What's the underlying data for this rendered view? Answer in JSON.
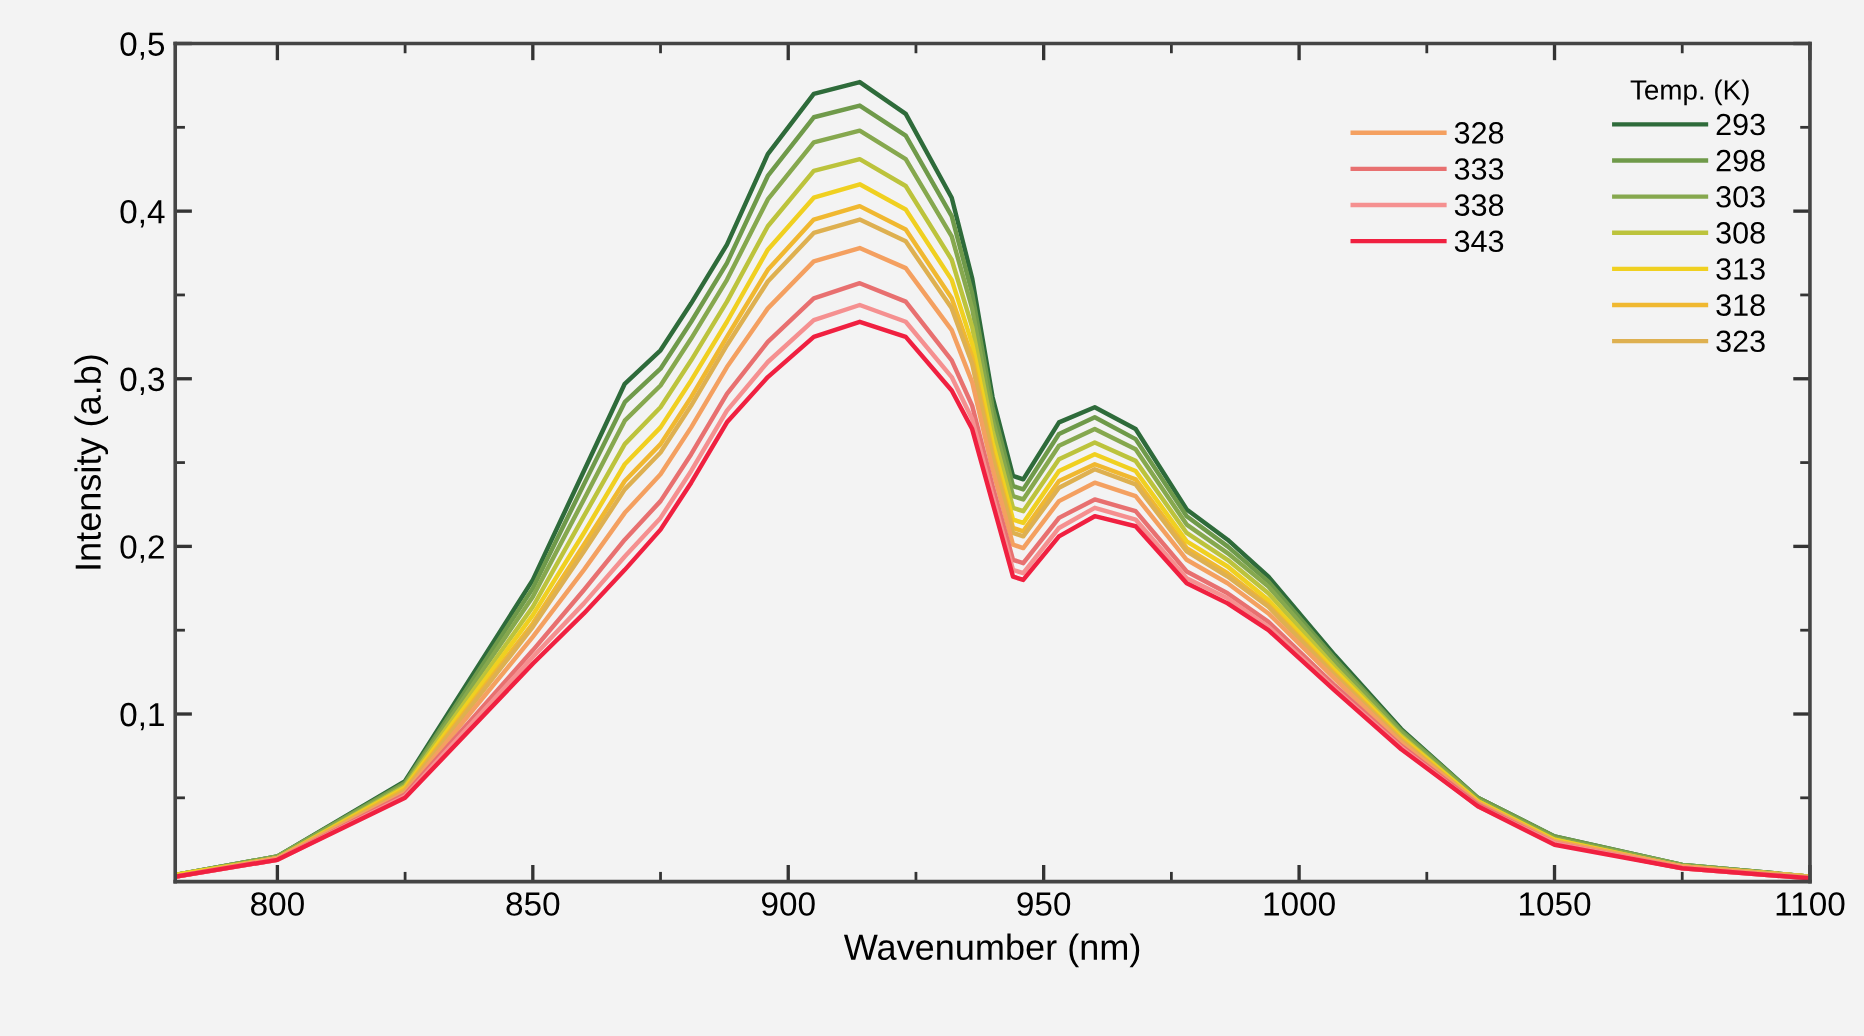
{
  "chart_data": {
    "type": "line",
    "xlabel": "Wavenumber (nm)",
    "ylabel": "Intensity (a.b)",
    "legend_title": "Temp. (K)",
    "legend": "top right",
    "grid": false,
    "line_style": "solid",
    "x": [
      780,
      800,
      825,
      850,
      860,
      868,
      875,
      881,
      888,
      896,
      905,
      914,
      923,
      932,
      936,
      940,
      944,
      946,
      953,
      960,
      968,
      978,
      986,
      994,
      1007,
      1020,
      1035,
      1050,
      1075,
      1100
    ],
    "xlim": [
      780,
      1100
    ],
    "xticks": [
      800,
      850,
      900,
      950,
      1000,
      1050,
      1100
    ],
    "ylim": [
      0,
      0.5
    ],
    "yticks": [
      {
        "value": 0.1,
        "label": "0,1"
      },
      {
        "value": 0.2,
        "label": "0,2"
      },
      {
        "value": 0.3,
        "label": "0,3"
      },
      {
        "value": 0.4,
        "label": "0,4"
      },
      {
        "value": 0.5,
        "label": "0,5"
      }
    ],
    "series": [
      {
        "name": "293",
        "color": "#2e6b3a",
        "values": [
          0.004,
          0.015,
          0.06,
          0.18,
          0.245,
          0.297,
          0.317,
          0.345,
          0.38,
          0.434,
          0.47,
          0.477,
          0.458,
          0.408,
          0.36,
          0.289,
          0.242,
          0.24,
          0.274,
          0.283,
          0.27,
          0.222,
          0.204,
          0.182,
          0.135,
          0.091,
          0.05,
          0.027,
          0.01,
          0.003
        ]
      },
      {
        "name": "298",
        "color": "#6f9a4a",
        "values": [
          0.004,
          0.015,
          0.059,
          0.175,
          0.237,
          0.286,
          0.306,
          0.334,
          0.369,
          0.421,
          0.456,
          0.463,
          0.445,
          0.397,
          0.351,
          0.283,
          0.236,
          0.234,
          0.267,
          0.277,
          0.264,
          0.218,
          0.2,
          0.179,
          0.133,
          0.09,
          0.05,
          0.027,
          0.01,
          0.003
        ]
      },
      {
        "name": "303",
        "color": "#86a84e",
        "values": [
          0.004,
          0.015,
          0.058,
          0.17,
          0.228,
          0.275,
          0.296,
          0.324,
          0.359,
          0.407,
          0.441,
          0.448,
          0.431,
          0.385,
          0.342,
          0.276,
          0.23,
          0.228,
          0.26,
          0.27,
          0.258,
          0.213,
          0.196,
          0.176,
          0.131,
          0.089,
          0.049,
          0.026,
          0.01,
          0.003
        ]
      },
      {
        "name": "308",
        "color": "#bcc33c",
        "values": [
          0.004,
          0.014,
          0.057,
          0.164,
          0.218,
          0.261,
          0.283,
          0.311,
          0.346,
          0.391,
          0.424,
          0.431,
          0.415,
          0.371,
          0.331,
          0.269,
          0.223,
          0.221,
          0.252,
          0.262,
          0.251,
          0.208,
          0.192,
          0.172,
          0.128,
          0.087,
          0.048,
          0.025,
          0.009,
          0.003
        ]
      },
      {
        "name": "313",
        "color": "#f0d020",
        "values": [
          0.004,
          0.014,
          0.056,
          0.159,
          0.208,
          0.249,
          0.271,
          0.299,
          0.334,
          0.377,
          0.408,
          0.416,
          0.401,
          0.359,
          0.321,
          0.262,
          0.216,
          0.214,
          0.245,
          0.255,
          0.245,
          0.203,
          0.188,
          0.168,
          0.126,
          0.086,
          0.048,
          0.025,
          0.009,
          0.003
        ]
      },
      {
        "name": "318",
        "color": "#f0b830",
        "values": [
          0.003,
          0.014,
          0.055,
          0.154,
          0.201,
          0.239,
          0.261,
          0.289,
          0.325,
          0.365,
          0.395,
          0.403,
          0.389,
          0.348,
          0.313,
          0.256,
          0.211,
          0.209,
          0.239,
          0.249,
          0.24,
          0.199,
          0.184,
          0.165,
          0.124,
          0.085,
          0.047,
          0.024,
          0.009,
          0.003
        ]
      },
      {
        "name": "323",
        "color": "#deb050",
        "values": [
          0.003,
          0.014,
          0.054,
          0.152,
          0.197,
          0.234,
          0.256,
          0.284,
          0.32,
          0.358,
          0.387,
          0.395,
          0.382,
          0.342,
          0.309,
          0.253,
          0.208,
          0.206,
          0.235,
          0.246,
          0.237,
          0.197,
          0.182,
          0.164,
          0.123,
          0.084,
          0.047,
          0.024,
          0.009,
          0.003
        ]
      },
      {
        "name": "328",
        "color": "#f4a060",
        "values": [
          0.003,
          0.014,
          0.053,
          0.146,
          0.186,
          0.22,
          0.243,
          0.271,
          0.307,
          0.342,
          0.37,
          0.378,
          0.366,
          0.329,
          0.298,
          0.246,
          0.201,
          0.199,
          0.227,
          0.238,
          0.23,
          0.192,
          0.178,
          0.16,
          0.121,
          0.083,
          0.047,
          0.024,
          0.009,
          0.002
        ]
      },
      {
        "name": "333",
        "color": "#e87070",
        "values": [
          0.003,
          0.013,
          0.052,
          0.138,
          0.174,
          0.204,
          0.227,
          0.255,
          0.291,
          0.322,
          0.348,
          0.357,
          0.346,
          0.311,
          0.284,
          0.236,
          0.192,
          0.19,
          0.217,
          0.228,
          0.221,
          0.185,
          0.172,
          0.155,
          0.117,
          0.081,
          0.046,
          0.023,
          0.008,
          0.002
        ]
      },
      {
        "name": "338",
        "color": "#f59090",
        "values": [
          0.003,
          0.013,
          0.051,
          0.134,
          0.166,
          0.194,
          0.217,
          0.245,
          0.281,
          0.31,
          0.335,
          0.344,
          0.334,
          0.301,
          0.276,
          0.23,
          0.186,
          0.184,
          0.211,
          0.223,
          0.216,
          0.181,
          0.169,
          0.152,
          0.115,
          0.08,
          0.045,
          0.023,
          0.008,
          0.002
        ]
      },
      {
        "name": "343",
        "color": "#f02040",
        "values": [
          0.003,
          0.013,
          0.05,
          0.13,
          0.16,
          0.186,
          0.21,
          0.238,
          0.274,
          0.301,
          0.325,
          0.334,
          0.325,
          0.293,
          0.27,
          0.226,
          0.182,
          0.18,
          0.206,
          0.218,
          0.212,
          0.178,
          0.166,
          0.15,
          0.114,
          0.079,
          0.045,
          0.022,
          0.008,
          0.002
        ]
      }
    ]
  }
}
